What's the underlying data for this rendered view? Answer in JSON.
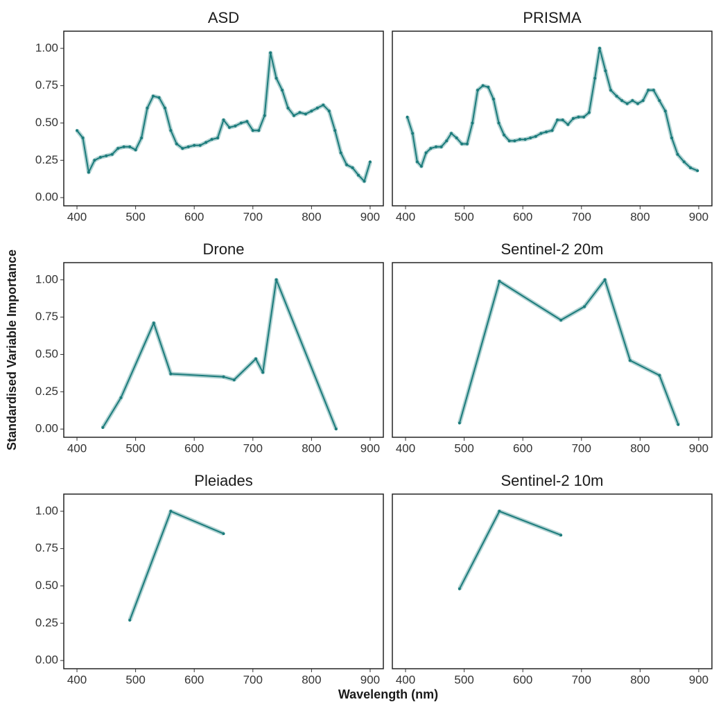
{
  "x_label": "Wavelength (nm)",
  "y_label": "Standardised Variable Importance",
  "chart_data": [
    {
      "type": "line",
      "title": "ASD",
      "color": "#1b7b7b",
      "x": [
        400,
        410,
        420,
        430,
        440,
        450,
        460,
        470,
        480,
        490,
        500,
        510,
        520,
        530,
        540,
        550,
        560,
        570,
        580,
        590,
        600,
        610,
        620,
        630,
        640,
        650,
        660,
        670,
        680,
        690,
        700,
        710,
        720,
        730,
        740,
        750,
        760,
        770,
        780,
        790,
        800,
        810,
        820,
        830,
        840,
        850,
        860,
        870,
        880,
        890,
        900
      ],
      "values": [
        0.45,
        0.4,
        0.17,
        0.25,
        0.27,
        0.28,
        0.29,
        0.33,
        0.34,
        0.34,
        0.32,
        0.4,
        0.6,
        0.68,
        0.67,
        0.6,
        0.45,
        0.36,
        0.33,
        0.34,
        0.35,
        0.35,
        0.37,
        0.39,
        0.4,
        0.52,
        0.47,
        0.48,
        0.5,
        0.51,
        0.45,
        0.45,
        0.55,
        0.97,
        0.8,
        0.72,
        0.6,
        0.55,
        0.57,
        0.56,
        0.58,
        0.6,
        0.62,
        0.58,
        0.45,
        0.3,
        0.22,
        0.2,
        0.15,
        0.11,
        0.24
      ],
      "xlim": [
        377.5,
        922.5
      ],
      "ylim": [
        -0.055,
        1.115
      ],
      "xticks": [
        400,
        500,
        600,
        700,
        800,
        900
      ],
      "yticks": [
        {
          "value": 0,
          "label": "0.00"
        },
        0.25,
        {
          "value": 0.5,
          "label": "0.50"
        },
        0.75,
        {
          "value": 1,
          "label": "1.00"
        }
      ]
    },
    {
      "type": "line",
      "title": "PRISMA",
      "color": "#1b7b7b",
      "x": [
        403,
        412,
        420,
        427,
        435,
        443,
        452,
        461,
        470,
        478,
        487,
        496,
        505,
        514,
        523,
        532,
        541,
        550,
        559,
        568,
        577,
        586,
        595,
        604,
        613,
        622,
        631,
        640,
        650,
        659,
        668,
        677,
        686,
        695,
        704,
        713,
        723,
        731,
        741,
        750,
        760,
        769,
        778,
        787,
        796,
        805,
        814,
        823,
        833,
        843,
        854,
        864,
        875,
        886,
        898
      ],
      "values": [
        0.54,
        0.43,
        0.24,
        0.21,
        0.3,
        0.33,
        0.34,
        0.34,
        0.38,
        0.43,
        0.4,
        0.36,
        0.36,
        0.5,
        0.72,
        0.75,
        0.74,
        0.66,
        0.5,
        0.42,
        0.38,
        0.38,
        0.39,
        0.39,
        0.4,
        0.41,
        0.43,
        0.44,
        0.45,
        0.52,
        0.52,
        0.49,
        0.53,
        0.54,
        0.54,
        0.57,
        0.8,
        1.0,
        0.85,
        0.72,
        0.68,
        0.65,
        0.63,
        0.65,
        0.63,
        0.65,
        0.72,
        0.72,
        0.65,
        0.58,
        0.4,
        0.29,
        0.24,
        0.2,
        0.18
      ],
      "xlim": [
        377.5,
        922.5
      ],
      "ylim": [
        -0.055,
        1.115
      ],
      "xticks": [
        400,
        500,
        600,
        700,
        800,
        900
      ]
    },
    {
      "type": "line",
      "title": "Drone",
      "color": "#1b7b7b",
      "x": [
        444,
        475,
        531,
        560,
        650,
        668,
        705,
        717,
        740,
        842
      ],
      "values": [
        0.01,
        0.21,
        0.71,
        0.37,
        0.35,
        0.33,
        0.47,
        0.38,
        1.0,
        0.0
      ],
      "xlim": [
        377.5,
        922.5
      ],
      "ylim": [
        -0.055,
        1.115
      ],
      "xticks": [
        400,
        500,
        600,
        700,
        800,
        900
      ],
      "yticks": [
        {
          "value": 0,
          "label": "0.00"
        },
        0.25,
        {
          "value": 0.5,
          "label": "0.50"
        },
        0.75,
        {
          "value": 1,
          "label": "1.00"
        }
      ]
    },
    {
      "type": "line",
      "title": "Sentinel-2 20m",
      "color": "#1b7b7b",
      "x": [
        492,
        560,
        665,
        705,
        740,
        783,
        833,
        865
      ],
      "values": [
        0.04,
        0.99,
        0.73,
        0.82,
        1.0,
        0.46,
        0.36,
        0.03
      ],
      "xlim": [
        377.5,
        922.5
      ],
      "ylim": [
        -0.055,
        1.115
      ],
      "xticks": [
        400,
        500,
        600,
        700,
        800,
        900
      ]
    },
    {
      "type": "line",
      "title": "Pleiades",
      "color": "#1b7b7b",
      "x": [
        490,
        560,
        650
      ],
      "values": [
        0.27,
        1.0,
        0.85
      ],
      "xlim": [
        377.5,
        922.5
      ],
      "ylim": [
        -0.055,
        1.115
      ],
      "xticks": [
        400,
        500,
        600,
        700,
        800,
        900
      ],
      "yticks": [
        {
          "value": 0,
          "label": "0.00"
        },
        0.25,
        {
          "value": 0.5,
          "label": "0.50"
        },
        0.75,
        {
          "value": 1,
          "label": "1.00"
        }
      ]
    },
    {
      "type": "line",
      "title": "Sentinel-2 10m",
      "color": "#1b7b7b",
      "x": [
        492,
        560,
        665
      ],
      "values": [
        0.48,
        1.0,
        0.84
      ],
      "xlim": [
        377.5,
        922.5
      ],
      "ylim": [
        -0.055,
        1.115
      ],
      "xticks": [
        400,
        500,
        600,
        700,
        800,
        900
      ]
    }
  ]
}
